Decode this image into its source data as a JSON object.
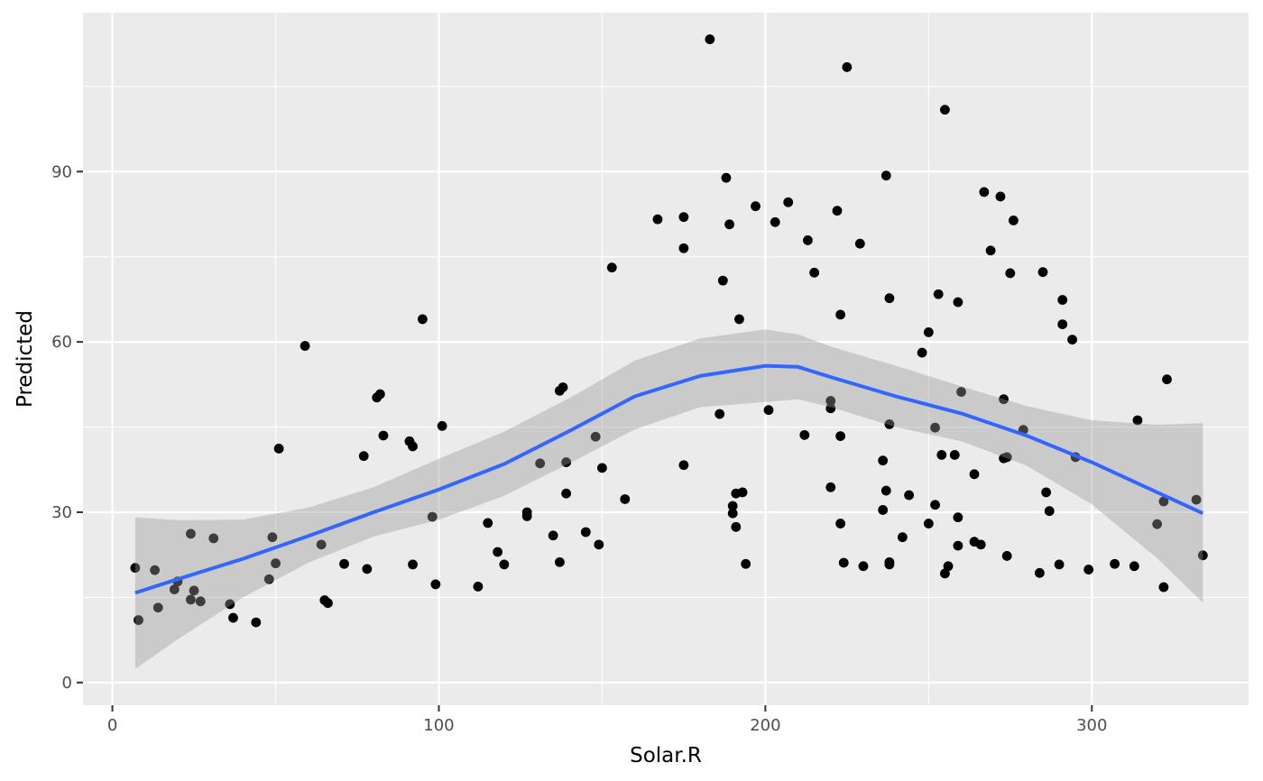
{
  "chart_data": {
    "type": "scatter",
    "title": "",
    "xlabel": "Solar.R",
    "ylabel": "Predicted",
    "xlim": [
      -9,
      348
    ],
    "ylim": [
      -4,
      118
    ],
    "x_ticks": [
      0,
      100,
      200,
      300
    ],
    "x_tick_labels": [
      "0",
      "100",
      "200",
      "300"
    ],
    "y_ticks": [
      0,
      30,
      60,
      90
    ],
    "y_tick_labels": [
      "0",
      "30",
      "60",
      "90"
    ],
    "grid": true,
    "legend": "none",
    "colors": {
      "panel": "#ebebeb",
      "grid": "#ffffff",
      "point": "#000000",
      "smooth_line": "#3366ff",
      "ribbon": "#999999"
    },
    "points": [
      [
        7,
        20.2
      ],
      [
        8,
        11.0
      ],
      [
        13,
        19.8
      ],
      [
        14,
        13.2
      ],
      [
        19,
        16.4
      ],
      [
        20,
        17.8
      ],
      [
        24,
        26.2
      ],
      [
        24,
        14.6
      ],
      [
        25,
        16.2
      ],
      [
        27,
        14.3
      ],
      [
        31,
        25.4
      ],
      [
        36,
        13.8
      ],
      [
        37,
        11.4
      ],
      [
        44,
        10.6
      ],
      [
        48,
        18.2
      ],
      [
        49,
        25.6
      ],
      [
        50,
        21.0
      ],
      [
        51,
        41.2
      ],
      [
        59,
        59.3
      ],
      [
        64,
        24.3
      ],
      [
        65,
        14.5
      ],
      [
        66,
        14.0
      ],
      [
        71,
        20.9
      ],
      [
        77,
        39.9
      ],
      [
        78,
        20.0
      ],
      [
        81,
        50.2
      ],
      [
        82,
        50.8
      ],
      [
        83,
        43.5
      ],
      [
        91,
        42.5
      ],
      [
        92,
        41.6
      ],
      [
        92,
        20.8
      ],
      [
        95,
        64.0
      ],
      [
        98,
        29.2
      ],
      [
        99,
        17.3
      ],
      [
        101,
        45.2
      ],
      [
        112,
        16.9
      ],
      [
        115,
        28.1
      ],
      [
        118,
        23.0
      ],
      [
        120,
        20.8
      ],
      [
        127,
        30.0
      ],
      [
        127,
        29.3
      ],
      [
        131,
        38.6
      ],
      [
        135,
        25.9
      ],
      [
        137,
        21.2
      ],
      [
        137,
        51.4
      ],
      [
        138,
        52.0
      ],
      [
        139,
        38.8
      ],
      [
        139,
        33.3
      ],
      [
        145,
        26.5
      ],
      [
        148,
        43.3
      ],
      [
        149,
        24.3
      ],
      [
        150,
        37.8
      ],
      [
        153,
        73.1
      ],
      [
        157,
        32.3
      ],
      [
        167,
        81.6
      ],
      [
        175,
        82.0
      ],
      [
        175,
        76.5
      ],
      [
        175,
        38.3
      ],
      [
        183,
        113.3
      ],
      [
        186,
        47.3
      ],
      [
        187,
        70.8
      ],
      [
        188,
        88.9
      ],
      [
        189,
        80.7
      ],
      [
        190,
        31.1
      ],
      [
        190,
        29.8
      ],
      [
        191,
        27.4
      ],
      [
        191,
        33.3
      ],
      [
        192,
        64.0
      ],
      [
        193,
        33.5
      ],
      [
        194,
        20.9
      ],
      [
        197,
        83.9
      ],
      [
        201,
        48.0
      ],
      [
        203,
        81.1
      ],
      [
        207,
        84.6
      ],
      [
        212,
        43.6
      ],
      [
        213,
        77.9
      ],
      [
        215,
        72.2
      ],
      [
        220,
        49.6
      ],
      [
        220,
        48.3
      ],
      [
        220,
        34.4
      ],
      [
        222,
        83.1
      ],
      [
        223,
        64.8
      ],
      [
        223,
        43.4
      ],
      [
        223,
        28.0
      ],
      [
        224,
        21.1
      ],
      [
        225,
        108.4
      ],
      [
        229,
        77.3
      ],
      [
        230,
        20.5
      ],
      [
        236,
        39.1
      ],
      [
        236,
        30.4
      ],
      [
        237,
        89.3
      ],
      [
        237,
        33.8
      ],
      [
        238,
        45.5
      ],
      [
        238,
        67.7
      ],
      [
        238,
        21.2
      ],
      [
        238,
        20.8
      ],
      [
        242,
        25.6
      ],
      [
        244,
        33.0
      ],
      [
        248,
        58.1
      ],
      [
        250,
        61.7
      ],
      [
        250,
        28.0
      ],
      [
        252,
        44.9
      ],
      [
        252,
        31.3
      ],
      [
        253,
        68.4
      ],
      [
        254,
        40.1
      ],
      [
        255,
        100.9
      ],
      [
        255,
        19.2
      ],
      [
        256,
        20.5
      ],
      [
        258,
        40.1
      ],
      [
        259,
        67.0
      ],
      [
        259,
        29.1
      ],
      [
        259,
        24.1
      ],
      [
        260,
        51.2
      ],
      [
        264,
        36.7
      ],
      [
        264,
        24.8
      ],
      [
        266,
        24.3
      ],
      [
        267,
        86.4
      ],
      [
        269,
        76.1
      ],
      [
        272,
        85.6
      ],
      [
        273,
        49.9
      ],
      [
        273,
        39.5
      ],
      [
        274,
        39.7
      ],
      [
        274,
        22.3
      ],
      [
        275,
        72.1
      ],
      [
        276,
        81.4
      ],
      [
        279,
        44.5
      ],
      [
        284,
        19.3
      ],
      [
        285,
        72.3
      ],
      [
        286,
        33.5
      ],
      [
        287,
        30.2
      ],
      [
        290,
        20.8
      ],
      [
        291,
        67.4
      ],
      [
        291,
        63.1
      ],
      [
        294,
        60.4
      ],
      [
        295,
        39.7
      ],
      [
        299,
        19.9
      ],
      [
        307,
        20.9
      ],
      [
        313,
        20.5
      ],
      [
        314,
        46.2
      ],
      [
        320,
        27.9
      ],
      [
        322,
        31.9
      ],
      [
        322,
        16.8
      ],
      [
        323,
        53.4
      ],
      [
        332,
        32.2
      ],
      [
        334,
        22.4
      ]
    ],
    "smooth": {
      "x": [
        7,
        20,
        40,
        60,
        80,
        100,
        120,
        140,
        160,
        180,
        200,
        210,
        220,
        240,
        260,
        280,
        300,
        320,
        334
      ],
      "y": [
        15.8,
        18.2,
        21.8,
        25.8,
        30.0,
        34.0,
        38.5,
        44.3,
        50.4,
        54.0,
        55.8,
        55.6,
        53.8,
        50.4,
        47.4,
        43.5,
        38.8,
        33.5,
        29.8
      ]
    },
    "ribbon": {
      "x": [
        7,
        20,
        40,
        60,
        80,
        100,
        120,
        140,
        160,
        180,
        200,
        210,
        220,
        240,
        260,
        280,
        300,
        320,
        334
      ],
      "upper": [
        29.1,
        28.6,
        28.7,
        30.8,
        34.4,
        39.4,
        44.2,
        50.1,
        56.7,
        60.6,
        62.2,
        61.3,
        59.2,
        55.8,
        52.2,
        48.7,
        46.2,
        45.4,
        45.7
      ],
      "lower": [
        2.4,
        7.6,
        15.0,
        21.1,
        25.7,
        28.7,
        32.9,
        38.6,
        44.6,
        48.5,
        49.4,
        49.9,
        48.5,
        45.0,
        42.5,
        38.2,
        31.4,
        21.9,
        14.1
      ]
    }
  }
}
